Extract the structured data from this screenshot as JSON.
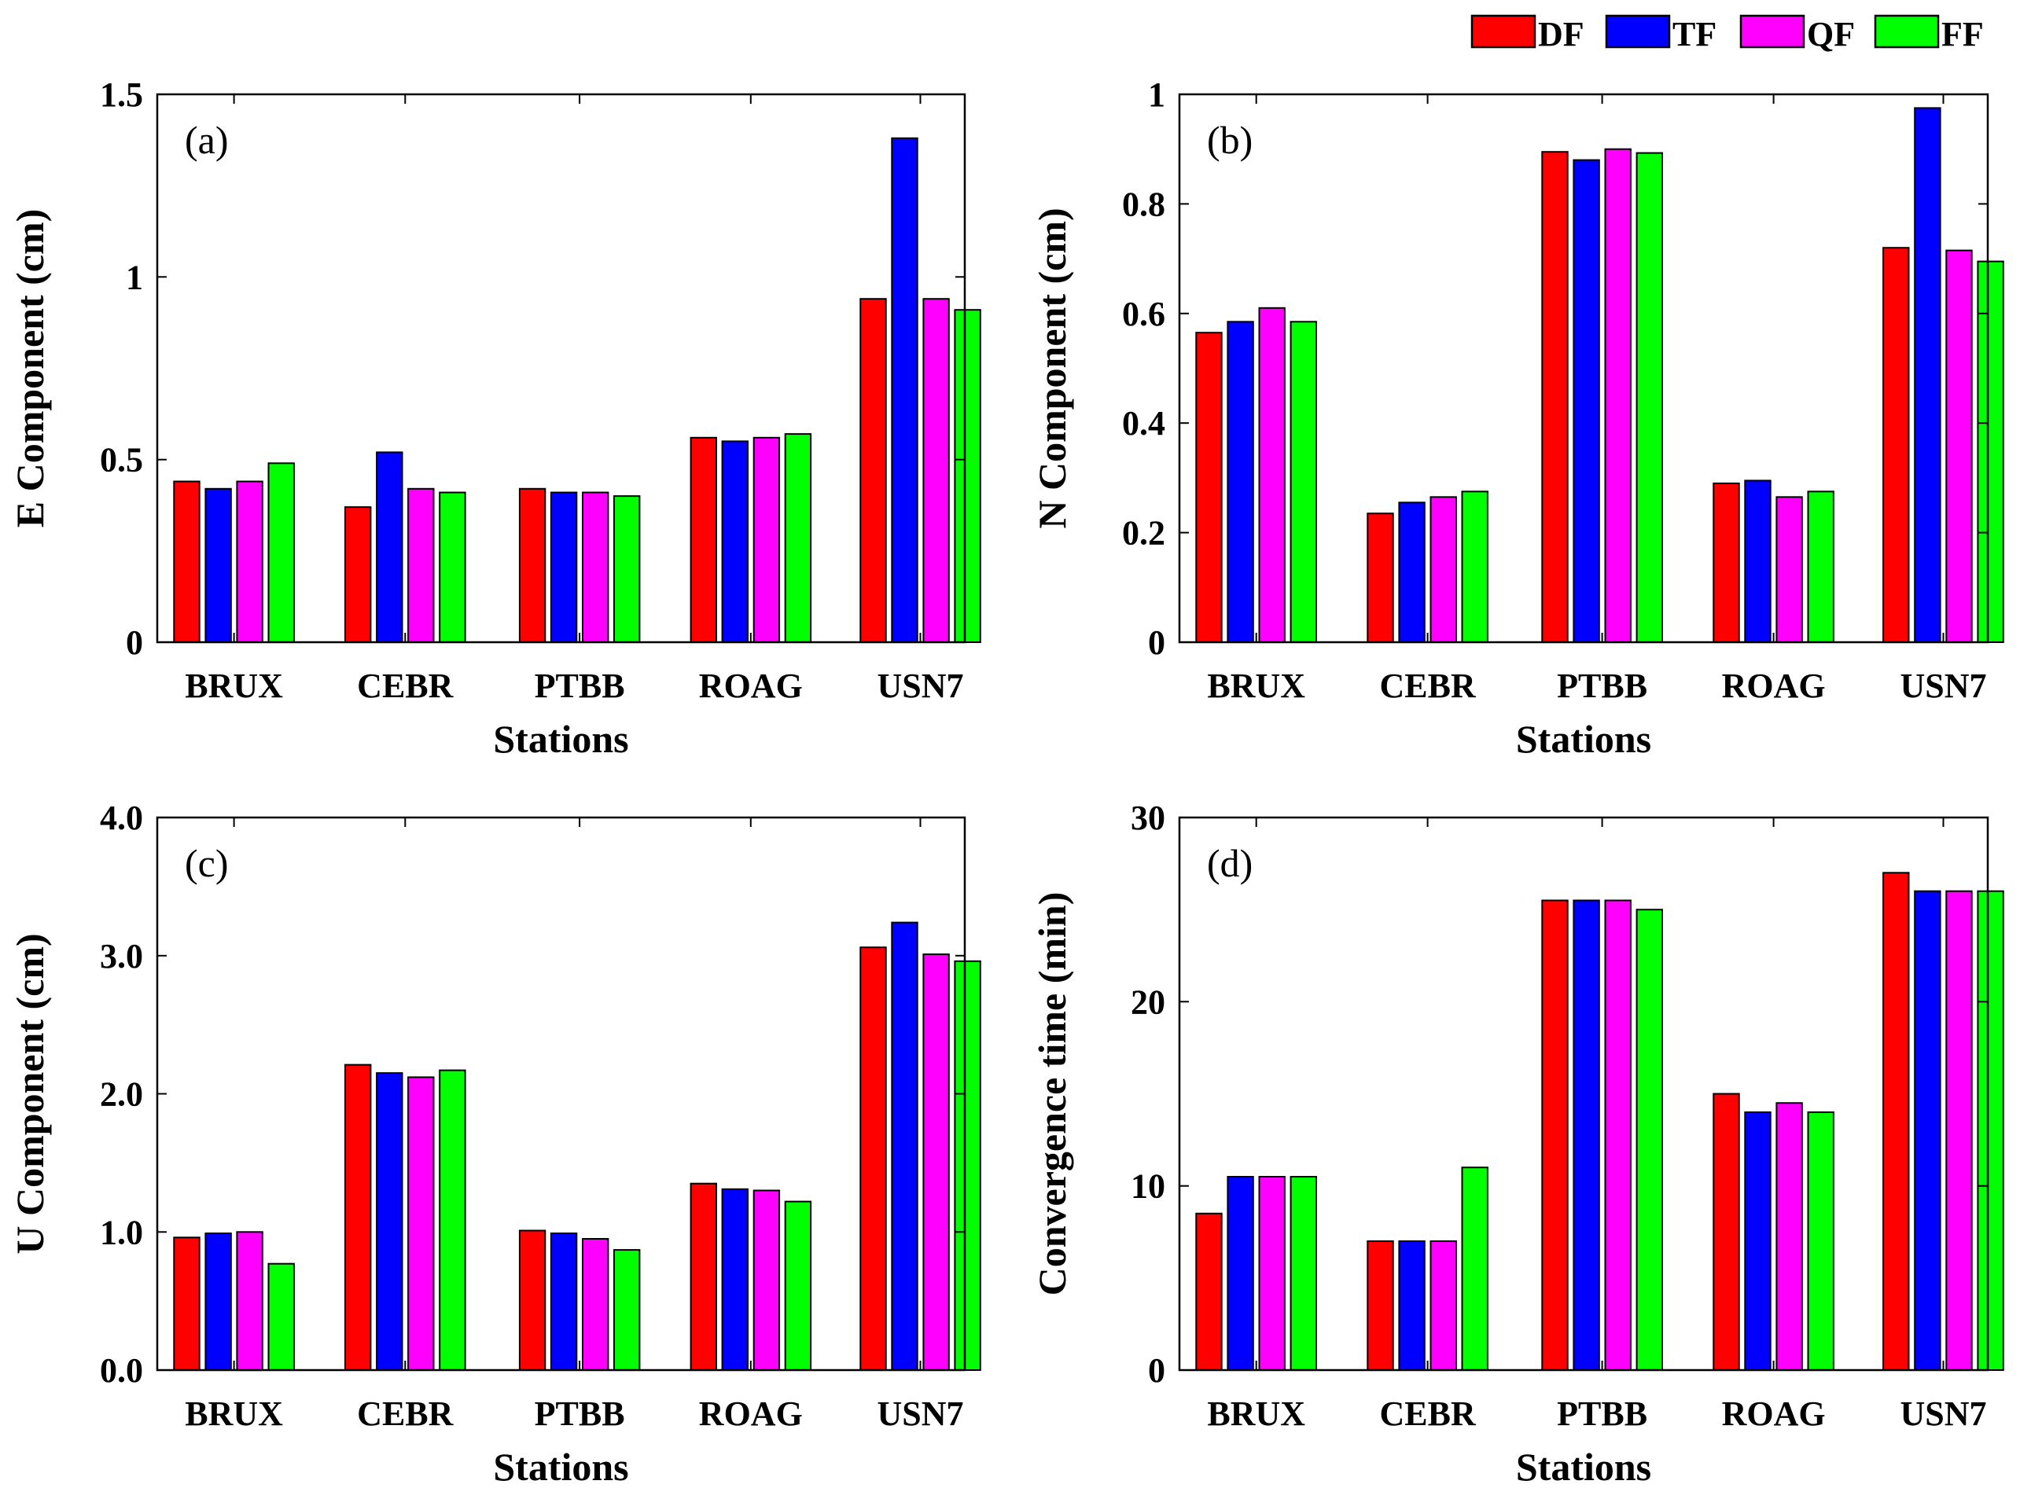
{
  "figure": {
    "legend": [
      {
        "name": "DF",
        "color": "#ff0000"
      },
      {
        "name": "TF",
        "color": "#0000ff"
      },
      {
        "name": "QF",
        "color": "#ff00ff"
      },
      {
        "name": "FF",
        "color": "#00ff00"
      }
    ]
  },
  "chart_data": [
    {
      "type": "bar",
      "panel": "(a)",
      "categories": [
        "BRUX",
        "CEBR",
        "PTBB",
        "ROAG",
        "USN7"
      ],
      "series": [
        {
          "name": "DF",
          "values": [
            0.44,
            0.37,
            0.42,
            0.56,
            0.94
          ]
        },
        {
          "name": "TF",
          "values": [
            0.42,
            0.52,
            0.41,
            0.55,
            1.38
          ]
        },
        {
          "name": "QF",
          "values": [
            0.44,
            0.42,
            0.41,
            0.56,
            0.94
          ]
        },
        {
          "name": "FF",
          "values": [
            0.49,
            0.41,
            0.4,
            0.57,
            0.91
          ]
        }
      ],
      "xlabel": "Stations",
      "ylabel": "E Component (cm)",
      "ylim": [
        0,
        1.5
      ],
      "yticks": [
        0,
        0.5,
        1,
        1.5
      ],
      "ytick_labels": [
        "0",
        "0.5",
        "1",
        "1.5"
      ]
    },
    {
      "type": "bar",
      "panel": "(b)",
      "categories": [
        "BRUX",
        "CEBR",
        "PTBB",
        "ROAG",
        "USN7"
      ],
      "series": [
        {
          "name": "DF",
          "values": [
            0.565,
            0.235,
            0.895,
            0.29,
            0.72
          ]
        },
        {
          "name": "TF",
          "values": [
            0.585,
            0.255,
            0.88,
            0.295,
            0.975
          ]
        },
        {
          "name": "QF",
          "values": [
            0.61,
            0.265,
            0.9,
            0.265,
            0.715
          ]
        },
        {
          "name": "FF",
          "values": [
            0.585,
            0.275,
            0.893,
            0.275,
            0.695
          ]
        }
      ],
      "xlabel": "Stations",
      "ylabel": "N Component  (cm)",
      "ylim": [
        0,
        1
      ],
      "yticks": [
        0,
        0.2,
        0.4,
        0.6,
        0.8,
        1
      ],
      "ytick_labels": [
        "0",
        "0.2",
        "0.4",
        "0.6",
        "0.8",
        "1"
      ]
    },
    {
      "type": "bar",
      "panel": "(c)",
      "categories": [
        "BRUX",
        "CEBR",
        "PTBB",
        "ROAG",
        "USN7"
      ],
      "series": [
        {
          "name": "DF",
          "values": [
            0.96,
            2.21,
            1.01,
            1.35,
            3.06
          ]
        },
        {
          "name": "TF",
          "values": [
            0.99,
            2.15,
            0.99,
            1.31,
            3.24
          ]
        },
        {
          "name": "QF",
          "values": [
            1.0,
            2.12,
            0.95,
            1.3,
            3.01
          ]
        },
        {
          "name": "FF",
          "values": [
            0.77,
            2.17,
            0.87,
            1.22,
            2.96
          ]
        }
      ],
      "xlabel": "Stations",
      "ylabel": "U Component (cm)",
      "ylim": [
        0,
        4
      ],
      "yticks": [
        0,
        1,
        2,
        3,
        4
      ],
      "ytick_labels": [
        "0.0",
        "1.0",
        "2.0",
        "3.0",
        "4.0"
      ]
    },
    {
      "type": "bar",
      "panel": "(d)",
      "categories": [
        "BRUX",
        "CEBR",
        "PTBB",
        "ROAG",
        "USN7"
      ],
      "series": [
        {
          "name": "DF",
          "values": [
            8.5,
            7.0,
            25.5,
            15.0,
            27.0
          ]
        },
        {
          "name": "TF",
          "values": [
            10.5,
            7.0,
            25.5,
            14.0,
            26.0
          ]
        },
        {
          "name": "QF",
          "values": [
            10.5,
            7.0,
            25.5,
            14.5,
            26.0
          ]
        },
        {
          "name": "FF",
          "values": [
            10.5,
            11.0,
            25.0,
            14.0,
            26.0
          ]
        }
      ],
      "xlabel": "Stations",
      "ylabel": "Convergence time (min)",
      "ylim": [
        0,
        30
      ],
      "yticks": [
        0,
        10,
        20,
        30
      ],
      "ytick_labels": [
        "0",
        "10",
        "20",
        "30"
      ]
    }
  ]
}
